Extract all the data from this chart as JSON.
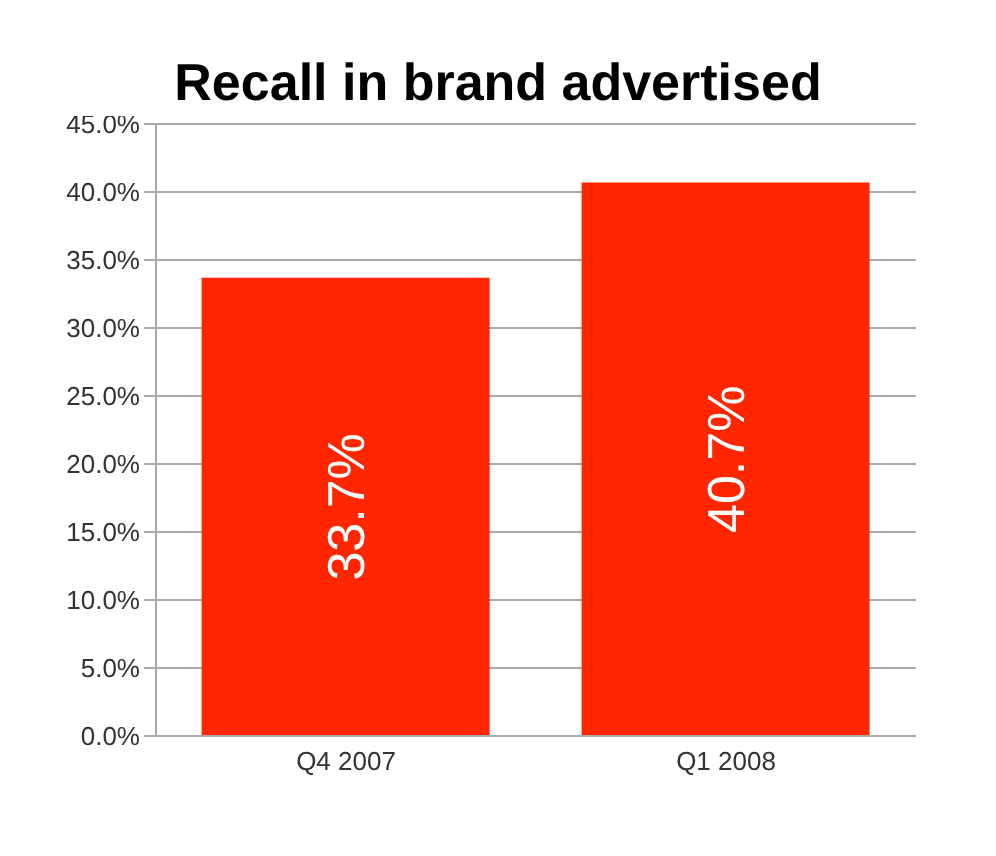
{
  "chart_data": {
    "type": "bar",
    "title": "Recall in brand advertised",
    "categories": [
      "Q4 2007",
      "Q1 2008"
    ],
    "values": [
      33.7,
      40.7
    ],
    "value_labels": [
      "33.7%",
      "40.7%"
    ],
    "color": "#ff2600",
    "ylim": [
      0,
      45
    ],
    "yticks": [
      {
        "value": 0,
        "label": "0.0%"
      },
      {
        "value": 5,
        "label": "5.0%"
      },
      {
        "value": 10,
        "label": "10.0%"
      },
      {
        "value": 15,
        "label": "15.0%"
      },
      {
        "value": 20,
        "label": "20.0%"
      },
      {
        "value": 25,
        "label": "25.0%"
      },
      {
        "value": 30,
        "label": "30.0%"
      },
      {
        "value": 35,
        "label": "35.0%"
      },
      {
        "value": 40,
        "label": "40.0%"
      },
      {
        "value": 45,
        "label": "45.0%"
      }
    ],
    "grid": "y"
  }
}
